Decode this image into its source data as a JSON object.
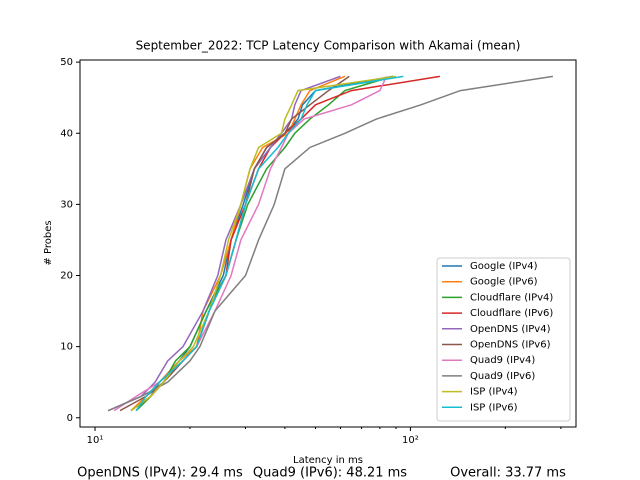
{
  "chart_data": {
    "type": "line",
    "title": "September_2022: TCP Latency Comparison with Akamai (mean)",
    "x_label": "Latency in ms",
    "y_label": "# Probes",
    "x_scale": "log",
    "xlim": [
      8.96,
      335
    ],
    "ylim": [
      -1.3,
      50.3
    ],
    "xticks": [
      {
        "value": 10,
        "label": "10¹"
      },
      {
        "value": 100,
        "label": "10²"
      }
    ],
    "xminorticks": [
      20,
      30,
      40,
      50,
      60,
      70,
      80,
      90,
      200,
      300
    ],
    "yticks": [
      0,
      10,
      20,
      30,
      40,
      50
    ],
    "legend": "lower right",
    "series": [
      {
        "name": "Google (IPv4)",
        "color": "#1f77b4",
        "x": [
          13.5,
          15,
          16,
          18.5,
          20,
          22.5,
          25.5,
          27,
          29.5,
          32,
          35,
          40,
          44,
          45.5,
          50,
          88
        ],
        "values": [
          1,
          3,
          5,
          8,
          10,
          15,
          20,
          25,
          30,
          35,
          38,
          40,
          42,
          44,
          46,
          48
        ]
      },
      {
        "name": "Google (IPv6)",
        "color": "#ff7f0e",
        "x": [
          13,
          14.5,
          16,
          18.5,
          21,
          22,
          25,
          27,
          29,
          31,
          34,
          41,
          43,
          45,
          48,
          62
        ],
        "values": [
          1,
          3,
          5,
          8,
          10,
          15,
          20,
          25,
          30,
          35,
          38,
          40,
          42,
          44,
          46,
          48
        ]
      },
      {
        "name": "Cloudflare (IPv4)",
        "color": "#2ca02c",
        "x": [
          13.5,
          15,
          16.5,
          18,
          20,
          22.5,
          26,
          28,
          30.5,
          35,
          40,
          43,
          48,
          55,
          62,
          88
        ],
        "values": [
          1,
          3,
          5,
          8,
          10,
          15,
          20,
          25,
          30,
          35,
          38,
          40,
          42,
          44,
          46,
          48
        ]
      },
      {
        "name": "Cloudflare (IPv6)",
        "color": "#d62728",
        "x": [
          13,
          15,
          16.5,
          19,
          21,
          23,
          26,
          27,
          30,
          33,
          36,
          40,
          45,
          50,
          65,
          124
        ],
        "values": [
          1,
          3,
          5,
          8,
          10,
          15,
          20,
          25,
          30,
          35,
          38,
          40,
          42,
          44,
          46,
          48
        ]
      },
      {
        "name": "OpenDNS (IPv4)",
        "color": "#9467bd",
        "x": [
          11,
          14,
          15.5,
          17,
          19,
          22,
          24.5,
          26,
          29,
          32,
          36,
          39,
          42,
          43,
          45,
          60
        ],
        "values": [
          1,
          3,
          5,
          8,
          10,
          15,
          20,
          25,
          30,
          35,
          38,
          40,
          42,
          44,
          46,
          48
        ]
      },
      {
        "name": "OpenDNS (IPv6)",
        "color": "#8c564b",
        "x": [
          12,
          14.5,
          16.5,
          19,
          21,
          23,
          26,
          28,
          30,
          32,
          35,
          40,
          42,
          48,
          55,
          64
        ],
        "values": [
          1,
          3,
          5,
          8,
          10,
          15,
          20,
          25,
          30,
          35,
          38,
          40,
          42,
          44,
          46,
          48
        ]
      },
      {
        "name": "Quad9 (IPv4)",
        "color": "#e377c2",
        "x": [
          11.5,
          13.5,
          16,
          19,
          21,
          24,
          27,
          29,
          33,
          36,
          39,
          41,
          46,
          65,
          80,
          84
        ],
        "values": [
          1,
          3,
          5,
          8,
          10,
          15,
          20,
          25,
          30,
          35,
          38,
          40,
          42,
          44,
          46,
          48
        ]
      },
      {
        "name": "Quad9 (IPv6)",
        "color": "#7f7f7f",
        "x": [
          11,
          14,
          17,
          20,
          21.5,
          24,
          30,
          33,
          37,
          40,
          48,
          62,
          78,
          108,
          144,
          283
        ],
        "values": [
          1,
          3,
          5,
          8,
          10,
          15,
          20,
          25,
          30,
          35,
          38,
          40,
          42,
          44,
          46,
          48
        ]
      },
      {
        "name": "ISP (IPv4)",
        "color": "#bcbd22",
        "x": [
          13,
          15,
          16.5,
          18.5,
          20.5,
          23,
          25,
          26.5,
          29,
          31,
          33,
          39,
          40,
          42,
          44,
          90
        ],
        "values": [
          1,
          3,
          5,
          8,
          10,
          15,
          20,
          25,
          30,
          35,
          38,
          40,
          42,
          44,
          46,
          48
        ]
      },
      {
        "name": "ISP (IPv6)",
        "color": "#17becf",
        "x": [
          13.5,
          14.5,
          16,
          19,
          21,
          23,
          26,
          28,
          30,
          33,
          38,
          41,
          45,
          47,
          50,
          95
        ],
        "values": [
          1,
          3,
          5,
          8,
          10,
          15,
          20,
          25,
          30,
          35,
          38,
          40,
          42,
          44,
          46,
          48
        ]
      }
    ],
    "annotations": [
      "OpenDNS (IPv4): 29.4 ms",
      "Quad9 (IPv6): 48.21 ms",
      "Overall: 33.77 ms"
    ]
  }
}
